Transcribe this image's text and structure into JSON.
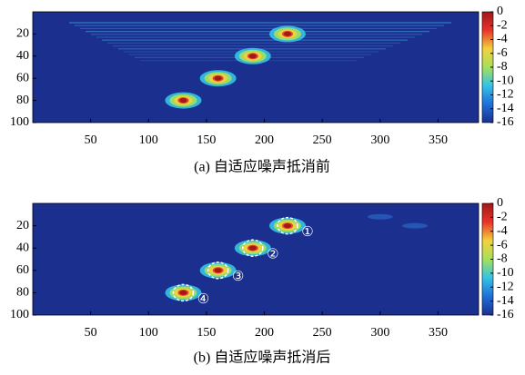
{
  "chart_data": [
    {
      "type": "heatmap",
      "title": "(a) 自适应噪声抵消前",
      "xlim": [
        0,
        385
      ],
      "ylim": [
        0,
        100
      ],
      "xticks": [
        50,
        100,
        150,
        200,
        250,
        300,
        350
      ],
      "yticks": [
        20,
        40,
        60,
        80,
        100
      ],
      "clim": [
        -16,
        0
      ],
      "cticks": [
        0,
        -2,
        -4,
        -6,
        -8,
        -10,
        -12,
        -14,
        -16
      ],
      "colormap": [
        "#1b2f8f",
        "#1f6fd8",
        "#35c3e6",
        "#a6e05a",
        "#f3d23b",
        "#e8332a",
        "#a01818"
      ],
      "peaks": {
        "x": [
          130,
          160,
          190,
          220
        ],
        "y": [
          80,
          60,
          40,
          20
        ],
        "values": [
          0,
          0,
          0,
          0
        ]
      }
    },
    {
      "type": "heatmap",
      "title": "(b) 自适应噪声抵消后",
      "xlim": [
        0,
        385
      ],
      "ylim": [
        0,
        100
      ],
      "xticks": [
        50,
        100,
        150,
        200,
        250,
        300,
        350
      ],
      "yticks": [
        20,
        40,
        60,
        80,
        100
      ],
      "clim": [
        -16,
        0
      ],
      "cticks": [
        0,
        -2,
        -4,
        -6,
        -8,
        -10,
        -12,
        -14,
        -16
      ],
      "colormap": [
        "#1b2f8f",
        "#1f6fd8",
        "#35c3e6",
        "#a6e05a",
        "#f3d23b",
        "#e8332a",
        "#a01818"
      ],
      "peaks": {
        "x": [
          130,
          160,
          190,
          220
        ],
        "y": [
          80,
          60,
          40,
          20
        ],
        "values": [
          0,
          0,
          0,
          0
        ]
      },
      "annotations": [
        "④",
        "③",
        "②",
        "①"
      ]
    }
  ]
}
